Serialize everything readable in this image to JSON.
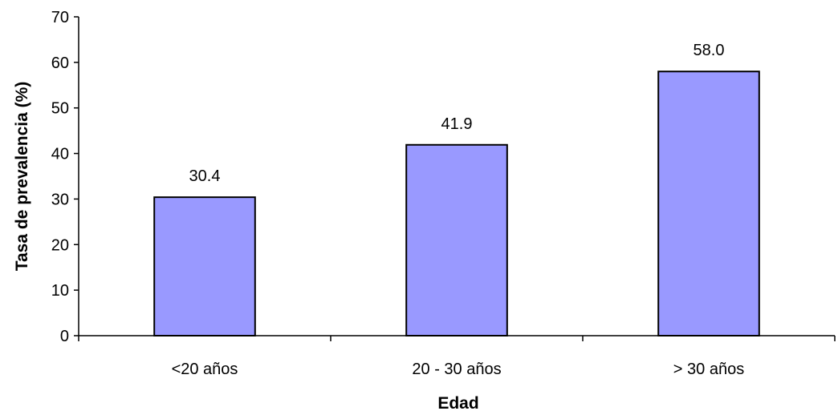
{
  "chart_data": {
    "type": "bar",
    "categories": [
      "<20 años",
      "20 - 30 años",
      "> 30 años"
    ],
    "values": [
      30.4,
      41.9,
      58.0
    ],
    "data_labels": [
      "30.4",
      "41.9",
      "58.0"
    ],
    "title": "",
    "xlabel": "Edad",
    "ylabel": "Tasa de prevalencia (%)",
    "ylim": [
      0,
      70
    ],
    "yticks": [
      0,
      10,
      20,
      30,
      40,
      50,
      60,
      70
    ],
    "grid": false,
    "legend": "none",
    "colors": {
      "bar_fill": "#9999ff",
      "bar_stroke": "#000000",
      "axis": "#000000",
      "text": "#000000"
    }
  }
}
